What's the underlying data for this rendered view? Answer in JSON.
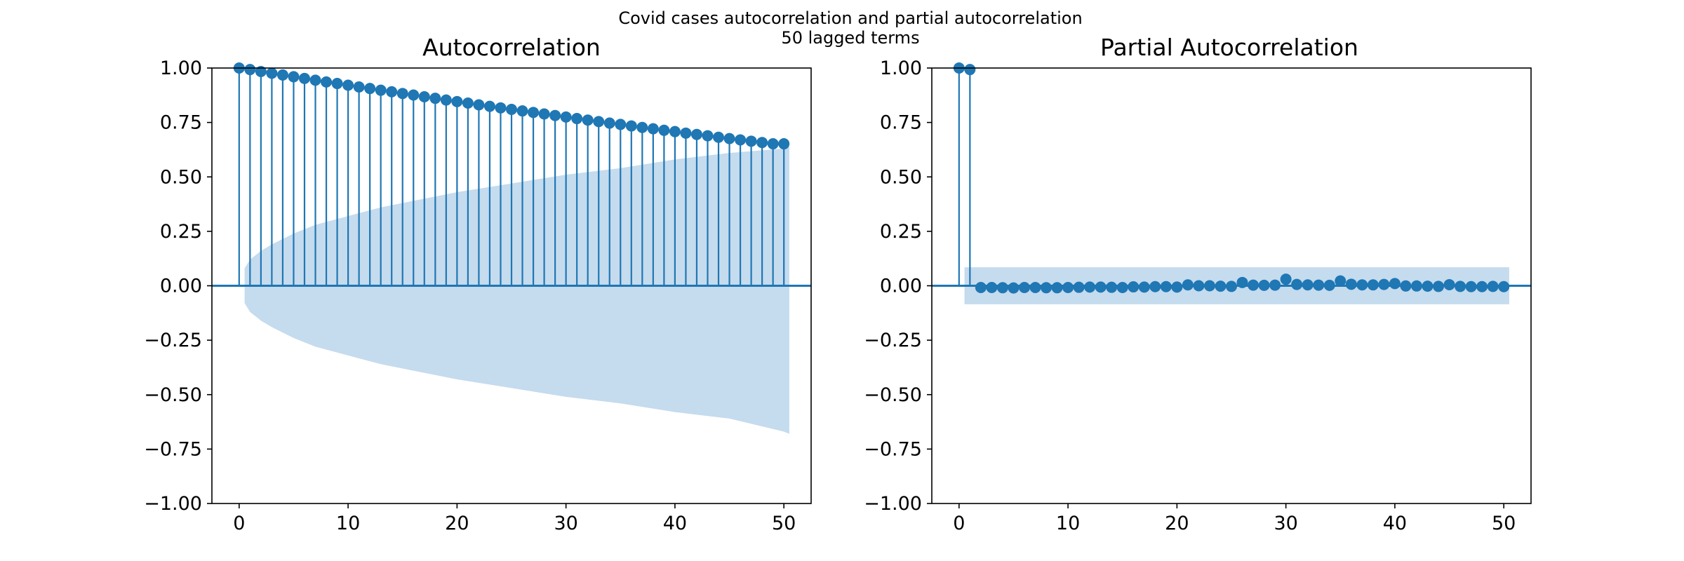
{
  "figure": {
    "suptitle_line1": "Covid cases autocorrelation and partial autocorrelation",
    "suptitle_line2": "50 lagged terms"
  },
  "colors": {
    "series": "#1f77b4",
    "confidence_band": "#c5dbee",
    "axes": "#000000"
  },
  "chart_data": [
    {
      "type": "stem",
      "title": "Autocorrelation",
      "xlabel": "",
      "ylabel": "",
      "xlim": [
        -2.5,
        52.5
      ],
      "ylim": [
        -1.0,
        1.0
      ],
      "xticks": [
        0,
        10,
        20,
        30,
        40,
        50
      ],
      "yticks": [
        -1.0,
        -0.75,
        -0.5,
        -0.25,
        0.0,
        0.25,
        0.5,
        0.75,
        1.0
      ],
      "ytick_labels": [
        "−1.00",
        "−0.75",
        "−0.50",
        "−0.25",
        "0.00",
        "0.25",
        "0.50",
        "0.75",
        "1.00"
      ],
      "grid": false,
      "x": [
        0,
        1,
        2,
        3,
        4,
        5,
        6,
        7,
        8,
        9,
        10,
        11,
        12,
        13,
        14,
        15,
        16,
        17,
        18,
        19,
        20,
        21,
        22,
        23,
        24,
        25,
        26,
        27,
        28,
        29,
        30,
        31,
        32,
        33,
        34,
        35,
        36,
        37,
        38,
        39,
        40,
        41,
        42,
        43,
        44,
        45,
        46,
        47,
        48,
        49,
        50
      ],
      "values": [
        1.0,
        0.993,
        0.984,
        0.976,
        0.968,
        0.96,
        0.952,
        0.944,
        0.936,
        0.929,
        0.921,
        0.913,
        0.906,
        0.898,
        0.891,
        0.883,
        0.876,
        0.868,
        0.861,
        0.853,
        0.846,
        0.839,
        0.831,
        0.824,
        0.817,
        0.81,
        0.803,
        0.796,
        0.789,
        0.782,
        0.775,
        0.768,
        0.761,
        0.754,
        0.747,
        0.741,
        0.734,
        0.727,
        0.721,
        0.714,
        0.708,
        0.701,
        0.695,
        0.689,
        0.682,
        0.676,
        0.67,
        0.664,
        0.658,
        0.652,
        0.652
      ],
      "confidence_band": {
        "x": [
          0.5,
          1,
          2,
          3,
          5,
          7,
          10,
          13,
          16,
          20,
          25,
          30,
          35,
          40,
          45,
          50,
          50.5
        ],
        "upper": [
          0.08,
          0.12,
          0.16,
          0.19,
          0.24,
          0.28,
          0.32,
          0.36,
          0.39,
          0.43,
          0.47,
          0.51,
          0.54,
          0.58,
          0.61,
          0.63,
          0.64
        ],
        "lower": [
          -0.08,
          -0.12,
          -0.16,
          -0.19,
          -0.24,
          -0.28,
          -0.32,
          -0.36,
          -0.39,
          -0.43,
          -0.47,
          -0.51,
          -0.54,
          -0.58,
          -0.61,
          -0.67,
          -0.68
        ]
      }
    },
    {
      "type": "stem",
      "title": "Partial Autocorrelation",
      "xlabel": "",
      "ylabel": "",
      "xlim": [
        -2.5,
        52.5
      ],
      "ylim": [
        -1.0,
        1.0
      ],
      "xticks": [
        0,
        10,
        20,
        30,
        40,
        50
      ],
      "yticks": [
        -1.0,
        -0.75,
        -0.5,
        -0.25,
        0.0,
        0.25,
        0.5,
        0.75,
        1.0
      ],
      "ytick_labels": [
        "−1.00",
        "−0.75",
        "−0.50",
        "−0.25",
        "0.00",
        "0.25",
        "0.50",
        "0.75",
        "1.00"
      ],
      "grid": false,
      "x": [
        0,
        1,
        2,
        3,
        4,
        5,
        6,
        7,
        8,
        9,
        10,
        11,
        12,
        13,
        14,
        15,
        16,
        17,
        18,
        19,
        20,
        21,
        22,
        23,
        24,
        25,
        26,
        27,
        28,
        29,
        30,
        31,
        32,
        33,
        34,
        35,
        36,
        37,
        38,
        39,
        40,
        41,
        42,
        43,
        44,
        45,
        46,
        47,
        48,
        49,
        50
      ],
      "values": [
        1.0,
        0.993,
        -0.008,
        -0.008,
        -0.009,
        -0.01,
        -0.008,
        -0.008,
        -0.009,
        -0.009,
        -0.008,
        -0.007,
        -0.006,
        -0.006,
        -0.007,
        -0.008,
        -0.005,
        -0.006,
        -0.004,
        -0.004,
        -0.006,
        0.004,
        0.0,
        0.0,
        -0.002,
        -0.003,
        0.015,
        0.003,
        0.002,
        0.003,
        0.03,
        0.006,
        0.004,
        0.003,
        0.002,
        0.022,
        0.007,
        0.004,
        0.004,
        0.006,
        0.01,
        -0.001,
        -0.001,
        -0.002,
        -0.003,
        0.005,
        -0.003,
        -0.004,
        -0.004,
        -0.003,
        -0.004
      ],
      "confidence_band": {
        "x": [
          0.5,
          50.5
        ],
        "upper": [
          0.085,
          0.085
        ],
        "lower": [
          -0.085,
          -0.085
        ]
      }
    }
  ]
}
